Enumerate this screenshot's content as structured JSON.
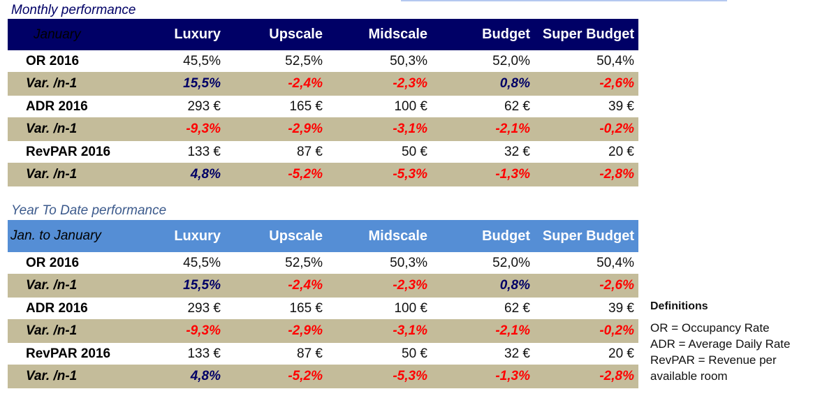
{
  "monthly": {
    "title": "Monthly performance",
    "header": {
      "label": "January",
      "columns": [
        "Luxury",
        "Upscale",
        "Midscale",
        "Budget",
        "Super Budget"
      ]
    },
    "rows": [
      {
        "label": "OR 2016",
        "type": "value",
        "values": [
          "45,5%",
          "52,5%",
          "50,3%",
          "52,0%",
          "50,4%"
        ]
      },
      {
        "label": "Var. /n-1",
        "type": "variation",
        "values": [
          "15,5%",
          "-2,4%",
          "-2,3%",
          "0,8%",
          "-2,6%"
        ],
        "signs": [
          "pos",
          "neg",
          "neg",
          "pos",
          "neg"
        ]
      },
      {
        "label": "ADR 2016",
        "type": "value",
        "values": [
          "293 €",
          "165 €",
          "100 €",
          "62 €",
          "39 €"
        ]
      },
      {
        "label": "Var. /n-1",
        "type": "variation",
        "values": [
          "-9,3%",
          "-2,9%",
          "-3,1%",
          "-2,1%",
          "-0,2%"
        ],
        "signs": [
          "neg",
          "neg",
          "neg",
          "neg",
          "neg"
        ]
      },
      {
        "label": "RevPAR 2016",
        "type": "value",
        "values": [
          "133 €",
          "87 €",
          "50 €",
          "32 €",
          "20 €"
        ]
      },
      {
        "label": "Var. /n-1",
        "type": "variation",
        "values": [
          "4,8%",
          "-5,2%",
          "-5,3%",
          "-1,3%",
          "-2,8%"
        ],
        "signs": [
          "pos",
          "neg",
          "neg",
          "neg",
          "neg"
        ]
      }
    ]
  },
  "ytd": {
    "title": "Year To Date performance",
    "header": {
      "label": "Jan. to January",
      "columns": [
        "Luxury",
        "Upscale",
        "Midscale",
        "Budget",
        "Super Budget"
      ]
    },
    "rows": [
      {
        "label": "OR 2016",
        "type": "value",
        "values": [
          "45,5%",
          "52,5%",
          "50,3%",
          "52,0%",
          "50,4%"
        ]
      },
      {
        "label": "Var. /n-1",
        "type": "variation",
        "values": [
          "15,5%",
          "-2,4%",
          "-2,3%",
          "0,8%",
          "-2,6%"
        ],
        "signs": [
          "pos",
          "neg",
          "neg",
          "pos",
          "neg"
        ]
      },
      {
        "label": "ADR 2016",
        "type": "value",
        "values": [
          "293 €",
          "165 €",
          "100 €",
          "62 €",
          "39 €"
        ]
      },
      {
        "label": "Var. /n-1",
        "type": "variation",
        "values": [
          "-9,3%",
          "-2,9%",
          "-3,1%",
          "-2,1%",
          "-0,2%"
        ],
        "signs": [
          "neg",
          "neg",
          "neg",
          "neg",
          "neg"
        ]
      },
      {
        "label": "RevPAR 2016",
        "type": "value",
        "values": [
          "133 €",
          "87 €",
          "50 €",
          "32 €",
          "20 €"
        ]
      },
      {
        "label": "Var. /n-1",
        "type": "variation",
        "values": [
          "4,8%",
          "-5,2%",
          "-5,3%",
          "-1,3%",
          "-2,8%"
        ],
        "signs": [
          "pos",
          "neg",
          "neg",
          "neg",
          "neg"
        ]
      }
    ]
  },
  "definitions": {
    "title": "Definitions",
    "lines": [
      "OR = Occupancy Rate",
      "ADR = Average Daily Rate",
      "RevPAR = Revenue per",
      "available room"
    ]
  },
  "colors": {
    "monthly_header_bg": "#000066",
    "ytd_header_bg": "#558ed5",
    "variation_row_bg": "#c4bc9a",
    "positive_variation": "#000066",
    "negative_variation": "#ff0000"
  }
}
